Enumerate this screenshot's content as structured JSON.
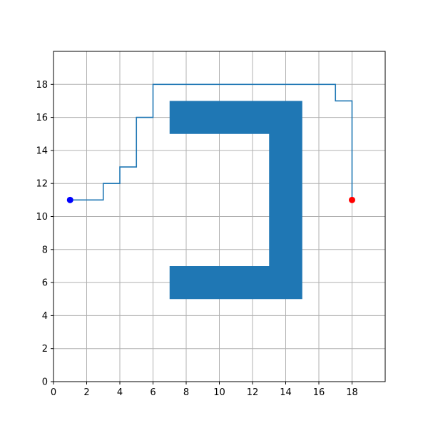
{
  "chart_data": {
    "type": "line",
    "title": "",
    "xlabel": "",
    "ylabel": "",
    "xlim": [
      0,
      20
    ],
    "ylim": [
      0,
      20
    ],
    "xticks": [
      0,
      2,
      4,
      6,
      8,
      10,
      12,
      14,
      16,
      18
    ],
    "yticks": [
      0,
      2,
      4,
      6,
      8,
      10,
      12,
      14,
      16,
      18
    ],
    "grid": true,
    "colors": {
      "path": "#1f77b4",
      "obstacle": "#1f77b4",
      "start": "#0000ff",
      "goal": "#ff0000",
      "grid": "#b0b0b0",
      "axes": "#000000"
    },
    "obstacle": {
      "polygon": [
        [
          7,
          17
        ],
        [
          15,
          17
        ],
        [
          15,
          5
        ],
        [
          7,
          5
        ],
        [
          7,
          7
        ],
        [
          13,
          7
        ],
        [
          13,
          15
        ],
        [
          7,
          15
        ]
      ]
    },
    "series": [
      {
        "x": [
          1,
          3,
          3,
          4,
          4,
          5,
          5,
          6,
          6,
          17,
          17,
          18,
          18
        ],
        "y": [
          11,
          11,
          12,
          12,
          13,
          13,
          16,
          16,
          18,
          18,
          17,
          17,
          11
        ]
      }
    ],
    "start": {
      "x": 1,
      "y": 11
    },
    "goal": {
      "x": 18,
      "y": 11
    }
  }
}
